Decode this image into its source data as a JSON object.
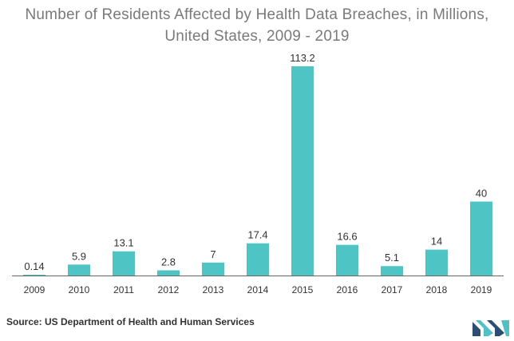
{
  "title_line1": "Number of Residents Affected by Health Data Breaches, in Millions,",
  "title_line2": "United States, 2009 - 2019",
  "source": "Source: US Department of Health and Human Services",
  "colors": {
    "bar": "#4fc4c4",
    "title": "#7a7a7a",
    "axis": "#666666",
    "logo_dark": "#2d4e73",
    "logo_light": "#52c1c6"
  },
  "chart_data": {
    "type": "bar",
    "title": "Number of Residents Affected by Health Data Breaches, in Millions, United States, 2009 - 2019",
    "categories": [
      "2009",
      "2010",
      "2011",
      "2012",
      "2013",
      "2014",
      "2015",
      "2016",
      "2017",
      "2018",
      "2019"
    ],
    "values": [
      0.14,
      5.9,
      13.1,
      2.8,
      7,
      17.4,
      113.2,
      16.6,
      5.1,
      14,
      40
    ],
    "value_labels": [
      "0.14",
      "5.9",
      "13.1",
      "2.8",
      "7",
      "17.4",
      "113.2",
      "16.6",
      "5.1",
      "14",
      "40"
    ],
    "xlabel": "",
    "ylabel": "",
    "ylim": [
      0,
      113.2
    ],
    "grid": false,
    "legend": "none",
    "data_labels": "above-bar"
  }
}
